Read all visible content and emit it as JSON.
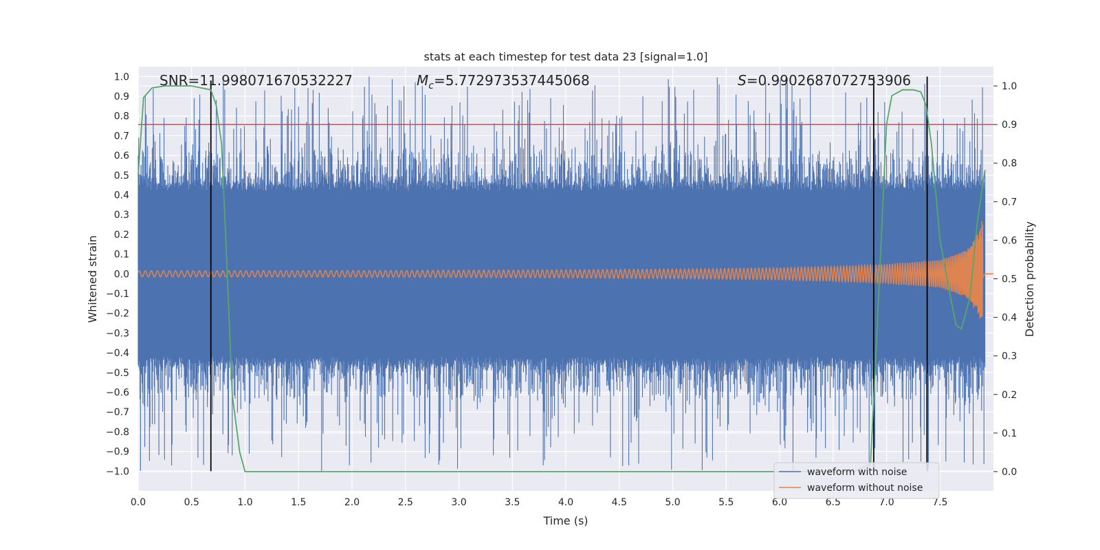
{
  "chart_data": {
    "type": "line",
    "title": "stats at each timestep for test data 23 [signal=1.0]",
    "xlabel": "Time (s)",
    "ylabel": "Whitened strain",
    "ylabel_right": "Detection probability",
    "xlim": [
      0.0,
      8.0
    ],
    "ylim": [
      -1.1,
      1.05
    ],
    "ylim_right": [
      -0.05,
      1.05
    ],
    "xticks": [
      "0.0",
      "0.5",
      "1.0",
      "1.5",
      "2.0",
      "2.5",
      "3.0",
      "3.5",
      "4.0",
      "4.5",
      "5.0",
      "5.5",
      "6.0",
      "6.5",
      "7.0",
      "7.5"
    ],
    "yticks": [
      "1.0",
      "0.9",
      "0.8",
      "0.7",
      "0.6",
      "0.5",
      "0.4",
      "0.3",
      "0.2",
      "0.1",
      "0.0",
      "−0.1",
      "−0.2",
      "−0.3",
      "−0.4",
      "−0.5",
      "−0.6",
      "−0.7",
      "−0.8",
      "−0.9",
      "−1.0"
    ],
    "yticks_right": [
      "1.0",
      "0.9",
      "0.8",
      "0.7",
      "0.6",
      "0.5",
      "0.4",
      "0.3",
      "0.2",
      "0.1",
      "0.0"
    ],
    "annotations": {
      "snr": "SNR=11.998071670532227",
      "mc_symbol": "M",
      "mc_sub": "c",
      "mc_value": "=5.772973537445068",
      "s_symbol": "S",
      "s_value": "=0.9902687072753906"
    },
    "grid": true,
    "legend_position": "lower-right",
    "series": [
      {
        "name": "waveform with noise",
        "color": "#4c72b0",
        "description_values": "noise band amplitude ~0.45, peaks up to ~1.0"
      },
      {
        "name": "waveform without noise",
        "color": "#dd8452",
        "envelope": {
          "x": [
            0.0,
            2.0,
            4.0,
            5.0,
            6.0,
            6.5,
            7.0,
            7.5,
            7.75,
            7.85,
            7.9,
            7.92,
            8.0
          ],
          "amplitude": [
            0.015,
            0.016,
            0.02,
            0.024,
            0.03,
            0.037,
            0.048,
            0.07,
            0.12,
            0.2,
            0.28,
            0.01,
            0.005
          ]
        }
      }
    ],
    "detection_probability": {
      "color": "#55a868",
      "x": [
        0.0,
        0.05,
        0.13,
        0.25,
        0.5,
        0.68,
        0.73,
        0.78,
        0.82,
        0.88,
        0.95,
        1.0,
        2.0,
        4.0,
        6.0,
        6.7,
        6.85,
        6.9,
        7.0,
        7.05,
        7.15,
        7.25,
        7.32,
        7.37,
        7.42,
        7.5,
        7.6,
        7.65,
        7.7,
        7.78,
        7.85,
        7.92
      ],
      "y": [
        0.77,
        0.97,
        0.995,
        1.0,
        1.0,
        0.99,
        0.95,
        0.85,
        0.6,
        0.2,
        0.05,
        0.0,
        0.0,
        0.0,
        0.0,
        0.0,
        0.02,
        0.3,
        0.9,
        0.975,
        0.99,
        0.99,
        0.985,
        0.95,
        0.85,
        0.6,
        0.45,
        0.38,
        0.37,
        0.45,
        0.65,
        0.78
      ]
    },
    "threshold_line": {
      "value_right": 0.9,
      "color": "#c44e52"
    },
    "vertical_markers": [
      {
        "x": 0.68,
        "y_from": -1.0,
        "y_to": 0.98
      },
      {
        "x": 6.88,
        "y_from": -1.0,
        "y_to": 1.0
      },
      {
        "x": 7.38,
        "y_from": -1.0,
        "y_to": 1.0
      }
    ],
    "legend": [
      {
        "label": "waveform with noise",
        "color": "#4c72b0"
      },
      {
        "label": "waveform without noise",
        "color": "#dd8452"
      }
    ]
  }
}
